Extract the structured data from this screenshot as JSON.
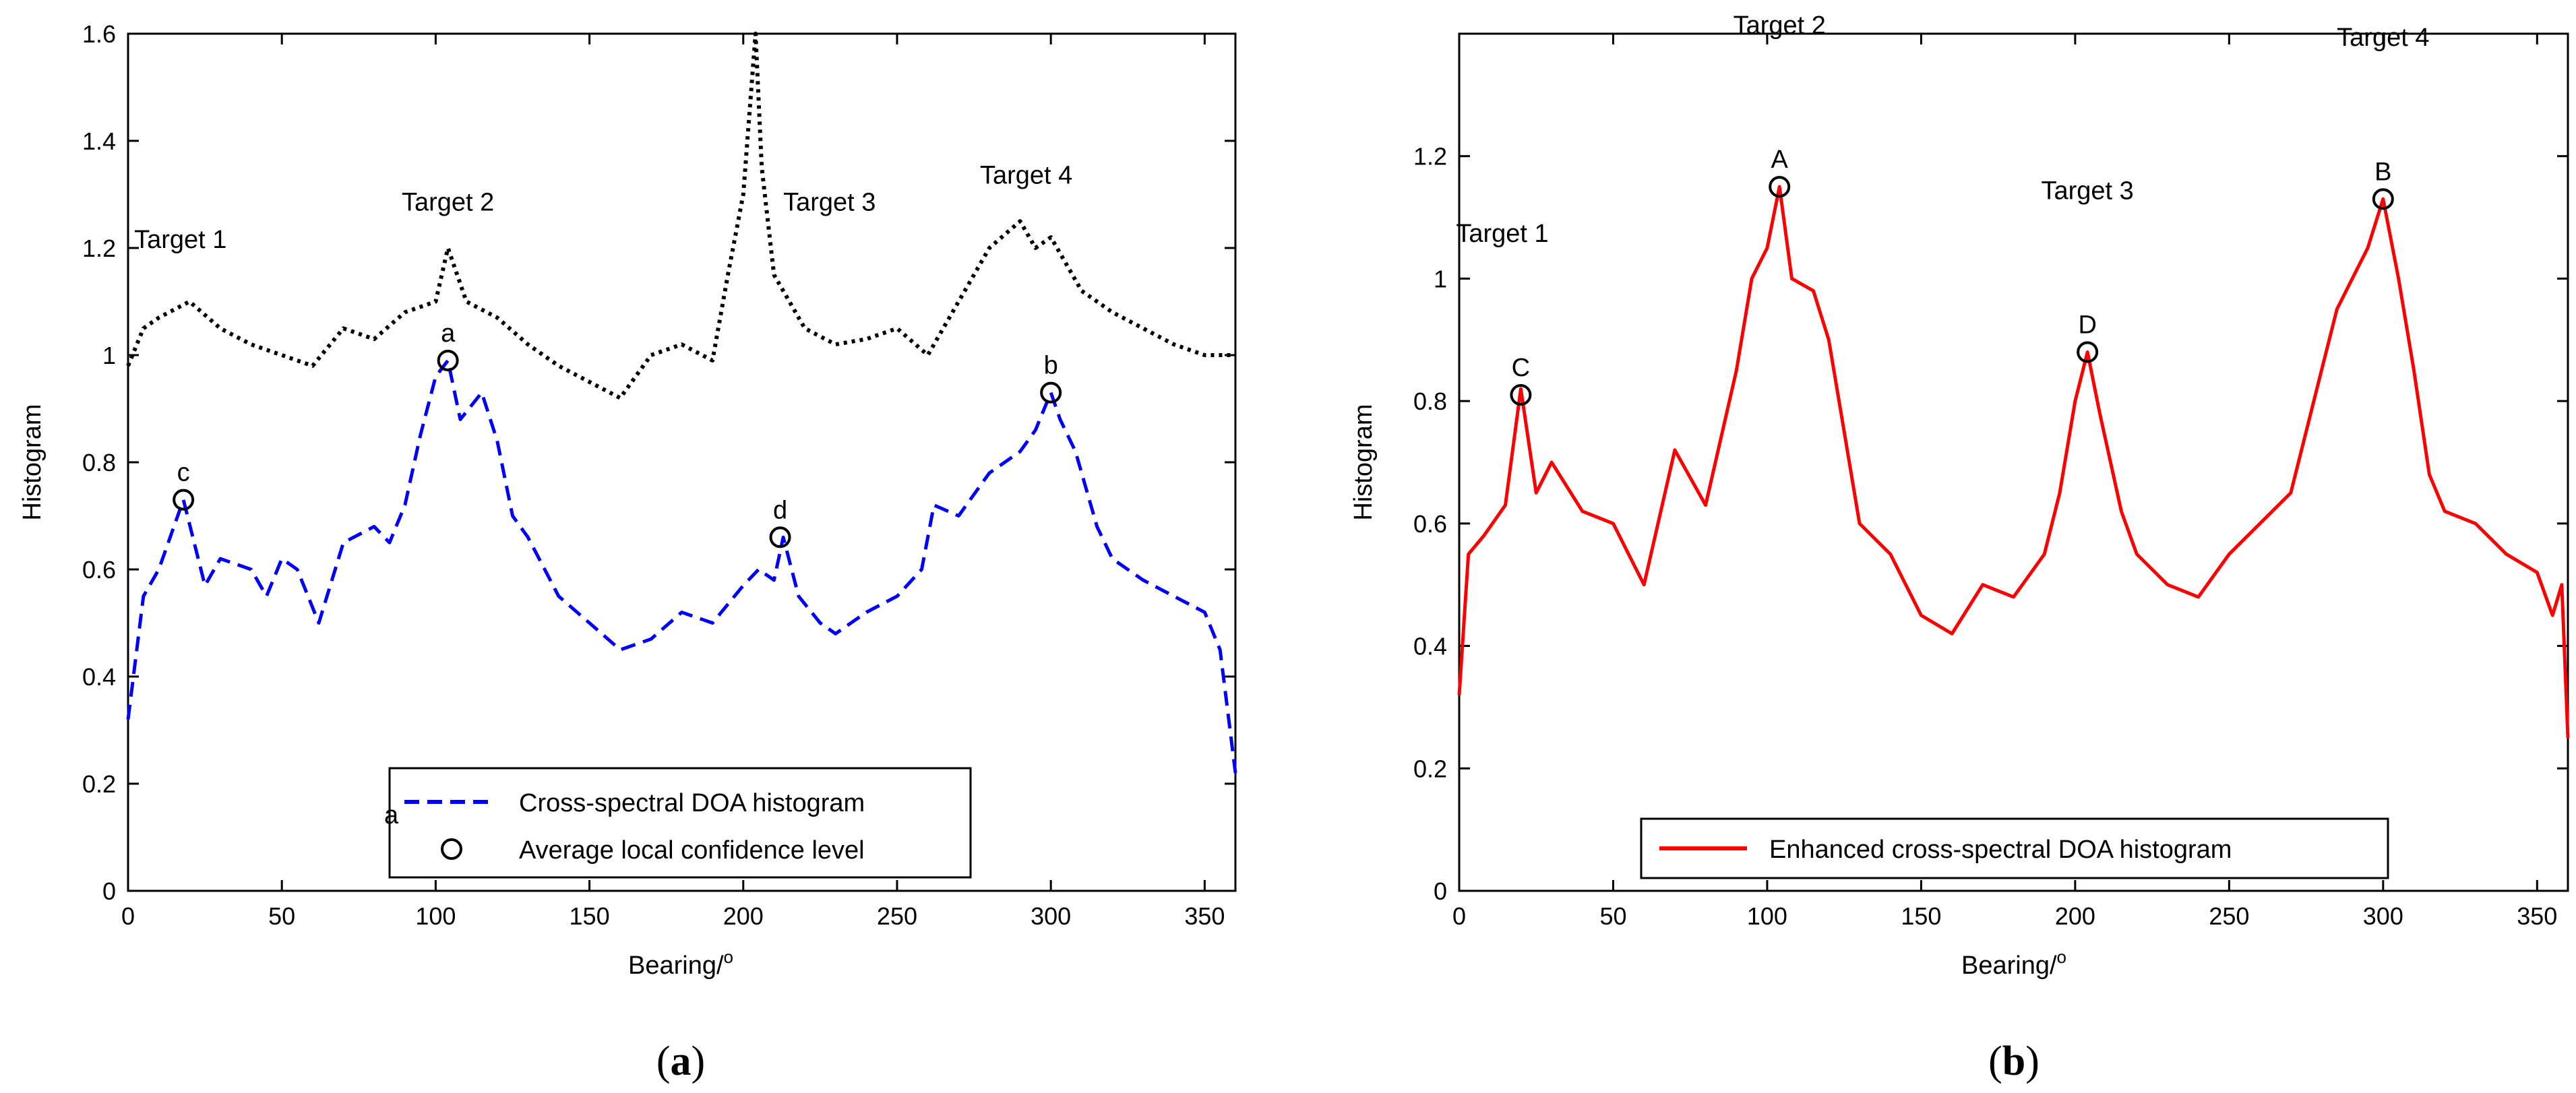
{
  "chart_data": [
    {
      "type": "line",
      "panel_label": "a",
      "xlabel": "Bearing/",
      "xlabel_sup": "o",
      "ylabel": "Histogram",
      "xlim": [
        0,
        360
      ],
      "ylim": [
        0,
        1.6
      ],
      "xticks": [
        "0",
        "50",
        "100",
        "150",
        "200",
        "250",
        "300",
        "350"
      ],
      "yticks": [
        "0",
        "0.2",
        "0.4",
        "0.6",
        "0.8",
        "1",
        "1.2",
        "1.4",
        "1.6"
      ],
      "series": [
        {
          "name": "Cross-spectral DOA histogram",
          "style": "dashed",
          "color": "#0000ff",
          "x": [
            0,
            5,
            10,
            18,
            25,
            30,
            40,
            45,
            50,
            55,
            62,
            70,
            80,
            85,
            90,
            95,
            100,
            104,
            108,
            115,
            120,
            125,
            130,
            140,
            150,
            160,
            170,
            180,
            190,
            200,
            205,
            210,
            213,
            218,
            225,
            230,
            240,
            250,
            258,
            262,
            270,
            280,
            290,
            295,
            300,
            303,
            308,
            315,
            320,
            330,
            340,
            350,
            355,
            360
          ],
          "values": [
            0.32,
            0.55,
            0.6,
            0.73,
            0.57,
            0.62,
            0.6,
            0.55,
            0.62,
            0.6,
            0.5,
            0.65,
            0.68,
            0.65,
            0.72,
            0.85,
            0.96,
            0.99,
            0.88,
            0.93,
            0.84,
            0.7,
            0.66,
            0.55,
            0.5,
            0.45,
            0.47,
            0.52,
            0.5,
            0.57,
            0.6,
            0.58,
            0.66,
            0.55,
            0.5,
            0.48,
            0.52,
            0.55,
            0.6,
            0.72,
            0.7,
            0.78,
            0.82,
            0.86,
            0.93,
            0.88,
            0.82,
            0.68,
            0.62,
            0.58,
            0.55,
            0.52,
            0.45,
            0.22
          ]
        },
        {
          "name": "",
          "style": "dotted",
          "color": "#000000",
          "x": [
            0,
            5,
            10,
            20,
            30,
            40,
            50,
            60,
            70,
            80,
            90,
            100,
            104,
            110,
            120,
            130,
            140,
            150,
            160,
            170,
            180,
            190,
            195,
            200,
            204,
            206,
            210,
            215,
            220,
            230,
            240,
            250,
            260,
            270,
            280,
            290,
            295,
            300,
            310,
            320,
            330,
            340,
            350,
            360
          ],
          "values": [
            0.98,
            1.05,
            1.07,
            1.1,
            1.05,
            1.02,
            1.0,
            0.98,
            1.05,
            1.03,
            1.08,
            1.1,
            1.2,
            1.1,
            1.07,
            1.02,
            0.98,
            0.95,
            0.92,
            1.0,
            1.02,
            0.99,
            1.15,
            1.3,
            1.6,
            1.35,
            1.15,
            1.1,
            1.05,
            1.02,
            1.03,
            1.05,
            1.0,
            1.1,
            1.2,
            1.25,
            1.2,
            1.22,
            1.12,
            1.08,
            1.05,
            1.02,
            1.0,
            1.0
          ]
        }
      ],
      "markers": {
        "name": "Average local confidence level",
        "points": [
          {
            "label": "c",
            "x": 18,
            "y": 0.73
          },
          {
            "label": "a",
            "x": 104,
            "y": 0.99
          },
          {
            "label": "d",
            "x": 212,
            "y": 0.66
          },
          {
            "label": "b",
            "x": 300,
            "y": 0.93
          }
        ]
      },
      "annotations": [
        {
          "text": "Target 1",
          "x": 2,
          "y": 1.2
        },
        {
          "text": "Target 2",
          "x": 104,
          "y": 1.27
        },
        {
          "text": "Target 3",
          "x": 213,
          "y": 1.27
        },
        {
          "text": "Target 4",
          "x": 292,
          "y": 1.32
        }
      ],
      "legend": {
        "position": "bottom-center",
        "entries": [
          "Cross-spectral DOA histogram",
          "Average local confidence level"
        ],
        "stray_label": "a"
      }
    },
    {
      "type": "line",
      "panel_label": "b",
      "xlabel": "Bearing/",
      "xlabel_sup": "o",
      "ylabel": "Histogram",
      "xlim": [
        0,
        360
      ],
      "ylim": [
        0,
        1.4
      ],
      "xticks": [
        "0",
        "50",
        "100",
        "150",
        "200",
        "250",
        "300",
        "350"
      ],
      "yticks": [
        "0",
        "0.2",
        "0.4",
        "0.6",
        "0.8",
        "1",
        "1.2"
      ],
      "series": [
        {
          "name": "Enhanced cross-spectral DOA histogram",
          "style": "solid",
          "color": "#ff0000",
          "x": [
            0,
            3,
            8,
            15,
            20,
            25,
            30,
            40,
            50,
            60,
            70,
            80,
            90,
            95,
            100,
            104,
            108,
            115,
            120,
            125,
            130,
            140,
            150,
            160,
            170,
            180,
            190,
            195,
            200,
            204,
            208,
            215,
            220,
            230,
            240,
            250,
            260,
            270,
            280,
            285,
            290,
            295,
            300,
            305,
            310,
            315,
            320,
            330,
            340,
            350,
            355,
            358,
            360
          ],
          "values": [
            0.32,
            0.55,
            0.58,
            0.63,
            0.82,
            0.65,
            0.7,
            0.62,
            0.6,
            0.5,
            0.72,
            0.63,
            0.85,
            1.0,
            1.05,
            1.15,
            1.0,
            0.98,
            0.9,
            0.75,
            0.6,
            0.55,
            0.45,
            0.42,
            0.5,
            0.48,
            0.55,
            0.65,
            0.8,
            0.88,
            0.78,
            0.62,
            0.55,
            0.5,
            0.48,
            0.55,
            0.6,
            0.65,
            0.85,
            0.95,
            1.0,
            1.05,
            1.13,
            1.0,
            0.85,
            0.68,
            0.62,
            0.6,
            0.55,
            0.52,
            0.45,
            0.5,
            0.25
          ]
        }
      ],
      "markers": {
        "name": "",
        "points": [
          {
            "label": "C",
            "x": 20,
            "y": 0.81
          },
          {
            "label": "A",
            "x": 104,
            "y": 1.15
          },
          {
            "label": "D",
            "x": 204,
            "y": 0.88
          },
          {
            "label": "B",
            "x": 300,
            "y": 1.13
          }
        ]
      },
      "annotations": [
        {
          "text": "Target 1",
          "x": 14,
          "y": 1.06
        },
        {
          "text": "Target 2",
          "x": 104,
          "y": 1.4
        },
        {
          "text": "Target 3",
          "x": 204,
          "y": 1.13
        },
        {
          "text": "Target 4",
          "x": 300,
          "y": 1.38
        }
      ],
      "legend": {
        "position": "bottom-center",
        "entries": [
          "Enhanced cross-spectral DOA histogram"
        ]
      }
    }
  ],
  "captions": {
    "a": "a",
    "b": "b"
  }
}
